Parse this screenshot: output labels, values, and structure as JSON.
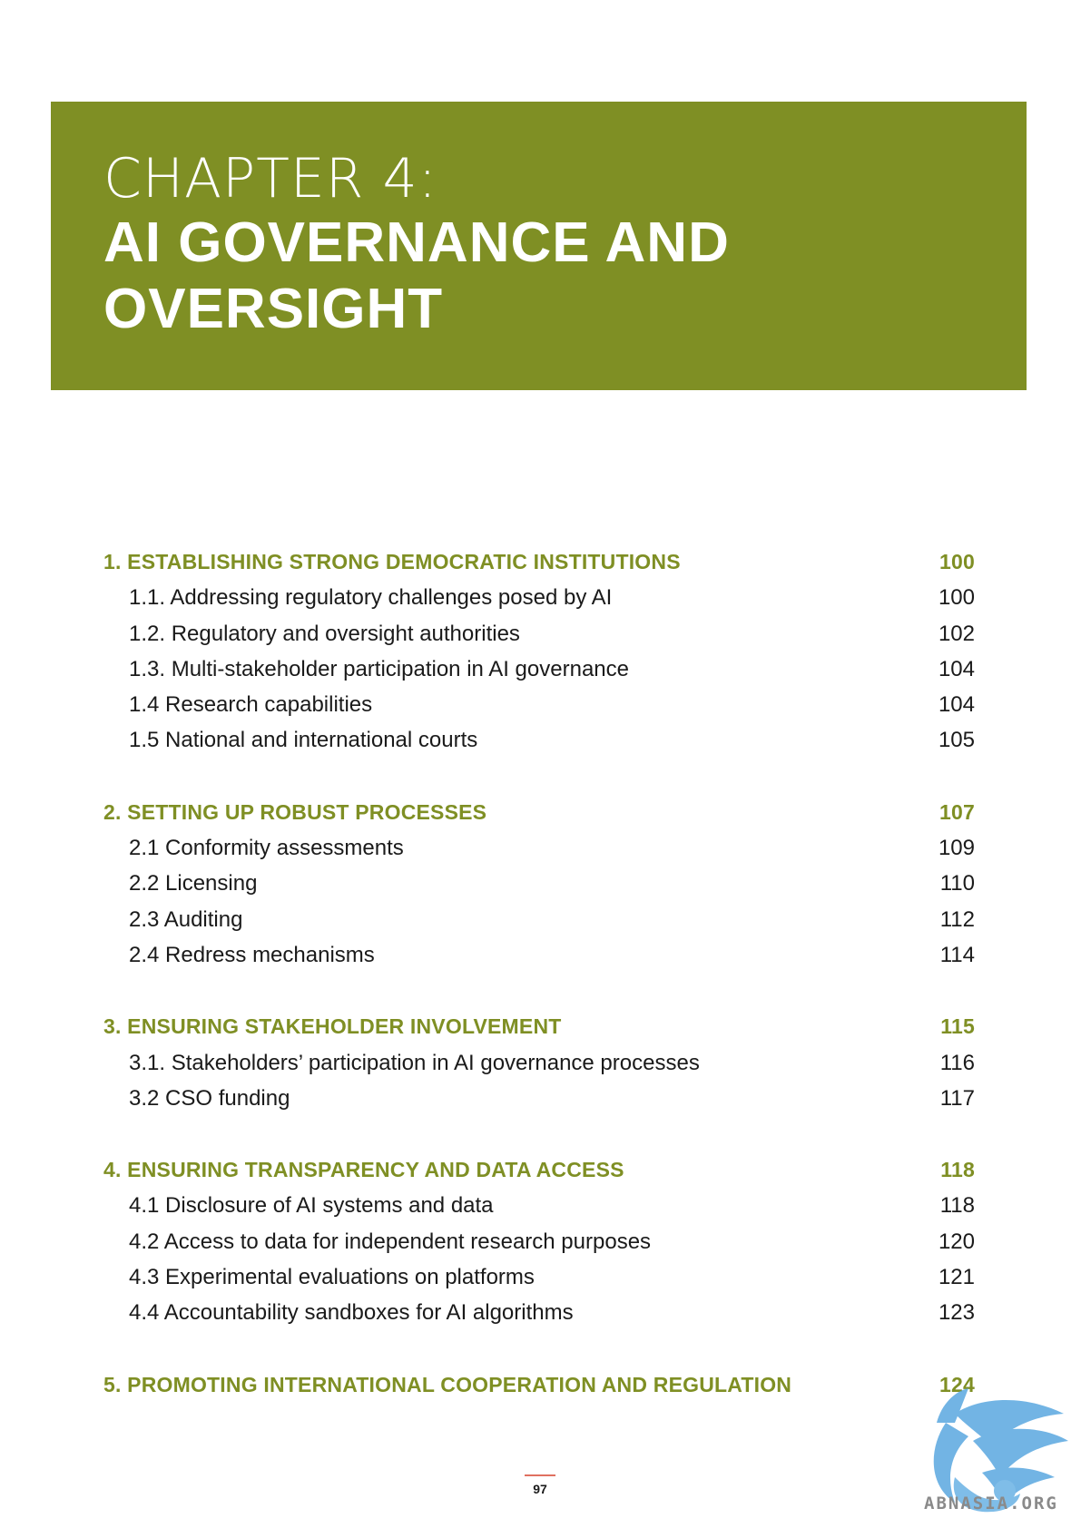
{
  "header": {
    "chapter_label": "CHAPTER 4:",
    "title_line1": "AI GOVERNANCE AND",
    "title_line2": "OVERSIGHT"
  },
  "toc": {
    "sections": [
      {
        "title": "1. ESTABLISHING STRONG DEMOCRATIC INSTITUTIONS",
        "page": "100",
        "items": [
          {
            "label": "1.1. Addressing regulatory challenges posed by AI",
            "page": "100"
          },
          {
            "label": "1.2. Regulatory and oversight authorities",
            "page": "102"
          },
          {
            "label": "1.3. Multi-stakeholder participation in AI governance",
            "page": "104"
          },
          {
            "label": "1.4 Research capabilities",
            "page": "104"
          },
          {
            "label": "1.5 National and international courts",
            "page": "105"
          }
        ]
      },
      {
        "title": "2. SETTING UP ROBUST PROCESSES",
        "page": "107",
        "items": [
          {
            "label": "2.1 Conformity assessments",
            "page": "109"
          },
          {
            "label": "2.2 Licensing",
            "page": "110"
          },
          {
            "label": "2.3 Auditing",
            "page": "112"
          },
          {
            "label": "2.4 Redress mechanisms",
            "page": "114"
          }
        ]
      },
      {
        "title": "3. ENSURING STAKEHOLDER INVOLVEMENT",
        "page": "115",
        "items": [
          {
            "label": "3.1. Stakeholders’ participation in AI governance processes",
            "page": "116"
          },
          {
            "label": "3.2 CSO funding",
            "page": "117"
          }
        ]
      },
      {
        "title": "4. ENSURING TRANSPARENCY AND DATA ACCESS",
        "page": "118",
        "items": [
          {
            "label": "4.1 Disclosure of AI systems and data",
            "page": "118"
          },
          {
            "label": "4.2 Access to data for independent research purposes",
            "page": "120"
          },
          {
            "label": "4.3 Experimental evaluations on platforms",
            "page": "121"
          },
          {
            "label": "4.4 Accountability sandboxes for AI algorithms",
            "page": "123"
          }
        ]
      },
      {
        "title": "5. PROMOTING INTERNATIONAL COOPERATION AND REGULATION",
        "page": "124",
        "items": []
      }
    ]
  },
  "footer": {
    "page_number": "97"
  },
  "watermark": {
    "text": "ABNASIA.ORG",
    "icon": "griffin-logo-icon"
  }
}
